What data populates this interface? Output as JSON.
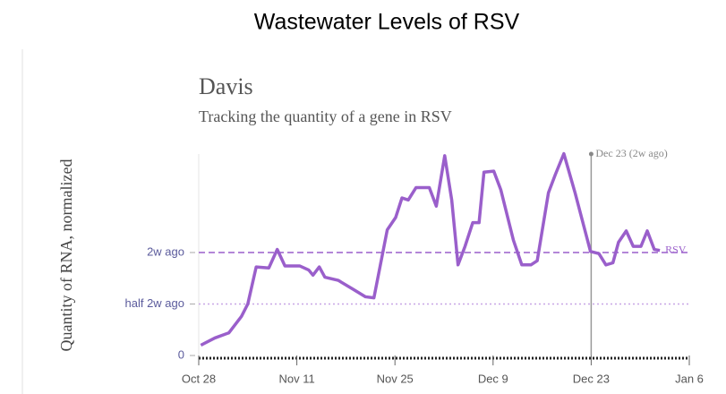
{
  "header": {
    "title": "Wastewater Levels of RSV"
  },
  "chart_data": {
    "type": "line",
    "title": "Davis",
    "subtitle": "Tracking the quantity of a gene in RSV",
    "y_label": "Quantity of RNA, normalized",
    "series": [
      {
        "name": "RSV",
        "color": "#9a5fcb",
        "x": [
          0.3,
          2.3,
          4.3,
          6.1,
          7,
          8.2,
          10,
          11.2,
          12.3,
          14.4,
          15.7,
          16.3,
          17.2,
          18,
          19.9,
          22.1,
          23.8,
          25,
          26.9,
          28.1,
          29,
          29.9,
          31,
          32.9,
          33.9,
          35.1,
          36.1,
          37,
          38,
          39.1,
          40,
          40.7,
          42.1,
          43.1,
          44.9,
          46.1,
          47.4,
          48.3,
          49.9,
          50.9,
          52.1,
          53.7,
          55.9,
          57.1,
          58.1,
          59.1,
          59.9,
          61,
          62,
          63.1,
          64,
          65,
          65.8
        ],
        "values": [
          0.1,
          0.17,
          0.22,
          0.38,
          0.5,
          0.86,
          0.85,
          1.03,
          0.87,
          0.87,
          0.83,
          0.78,
          0.86,
          0.76,
          0.73,
          0.64,
          0.57,
          0.56,
          1.22,
          1.34,
          1.53,
          1.51,
          1.63,
          1.63,
          1.45,
          1.94,
          1.51,
          0.88,
          1.06,
          1.29,
          1.29,
          1.78,
          1.79,
          1.61,
          1.12,
          0.88,
          0.88,
          0.92,
          1.58,
          1.76,
          1.96,
          1.58,
          1.01,
          0.99,
          0.88,
          0.9,
          1.1,
          1.21,
          1.06,
          1.06,
          1.21,
          1.03,
          1.02
        ]
      }
    ],
    "xlim": [
      0,
      70
    ],
    "xticks": [
      {
        "value": 0,
        "label": "Oct 28"
      },
      {
        "value": 14,
        "label": "Nov 11"
      },
      {
        "value": 28,
        "label": "Nov 25"
      },
      {
        "value": 42,
        "label": "Dec 9"
      },
      {
        "value": 56,
        "label": "Dec 23"
      },
      {
        "value": 70,
        "label": "Jan 6"
      }
    ],
    "ylim": [
      0,
      2
    ],
    "yticks": [
      0,
      {
        "value": 0.5,
        "label": "half 2w ago"
      },
      {
        "value": 1,
        "label": "2w ago"
      }
    ],
    "annotations": [
      {
        "text": "Dec 23 (2w ago)",
        "x": 56
      }
    ]
  }
}
